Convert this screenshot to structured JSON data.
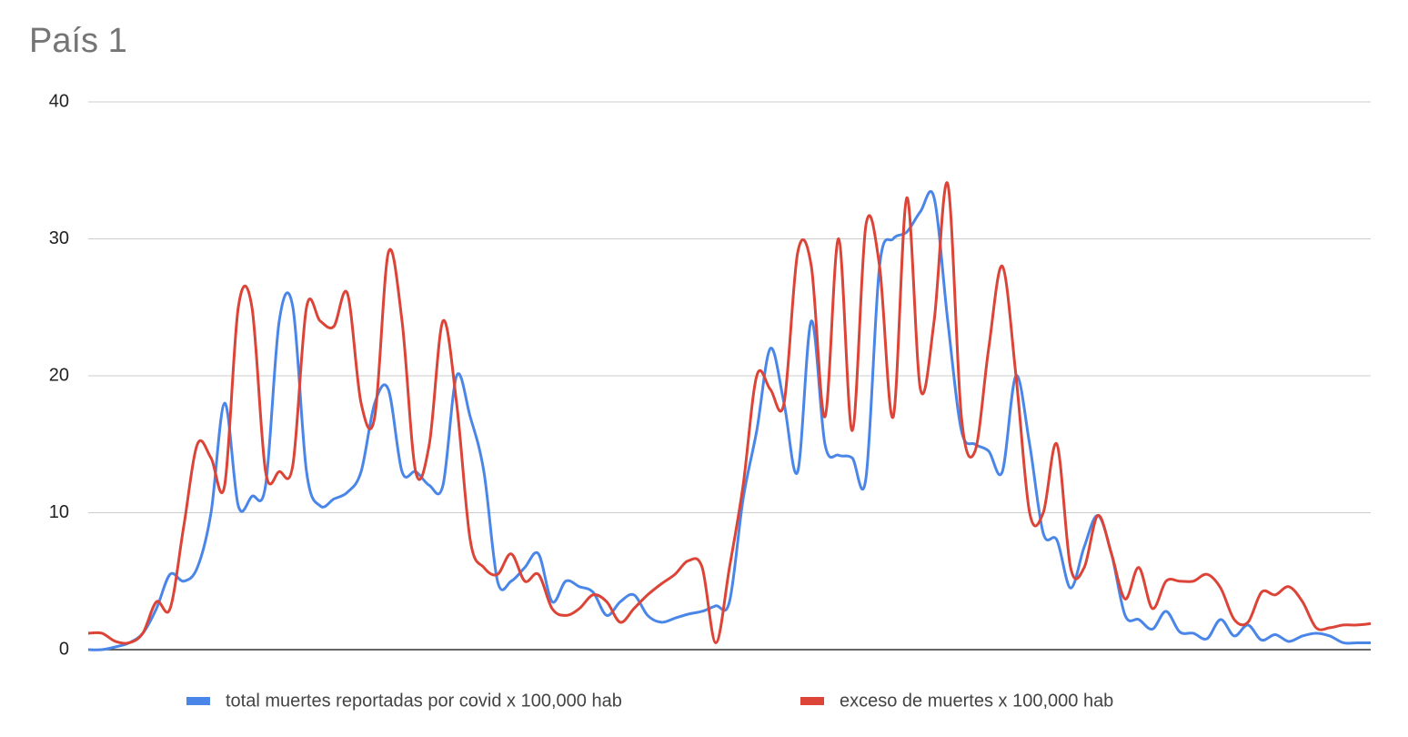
{
  "chart_data": {
    "type": "line",
    "title": "País 1",
    "categories": [
      null,
      null,
      null,
      null,
      null,
      null,
      null,
      null,
      null,
      null,
      null,
      null,
      null,
      null,
      null,
      null,
      null,
      null,
      null,
      null,
      null,
      null,
      null,
      null,
      null,
      null,
      null,
      null,
      null,
      null,
      null,
      null,
      null,
      null,
      null,
      null,
      null,
      null,
      null,
      null,
      null,
      null,
      null,
      null,
      null,
      null,
      null,
      null,
      null,
      null,
      null,
      null,
      null,
      null,
      null,
      null,
      null,
      null,
      null,
      null,
      null,
      null,
      null,
      null,
      null,
      null,
      null,
      null,
      null,
      null,
      null,
      null,
      null,
      null,
      null,
      null,
      null,
      null,
      null,
      null,
      null,
      null,
      null,
      null,
      null,
      null,
      null,
      null,
      null,
      null,
      null,
      null,
      null,
      null,
      null
    ],
    "series": [
      {
        "name": "total muertes reportadas por covid x 100,000 hab",
        "color": "#4a86e8",
        "values": [
          0,
          0,
          0.2,
          0.5,
          1.2,
          3,
          5.5,
          5,
          6,
          10,
          18,
          10.5,
          11.2,
          12,
          24,
          25,
          13,
          10.5,
          11,
          11.5,
          13,
          18,
          19,
          13,
          13,
          12,
          12,
          20,
          17,
          13,
          5,
          5,
          6,
          7,
          3.5,
          5,
          4.6,
          4.2,
          2.5,
          3.5,
          4,
          2.5,
          2,
          2.3,
          2.6,
          2.8,
          3.2,
          3.5,
          11,
          16,
          22,
          18,
          13,
          24,
          15,
          14.2,
          14,
          12.5,
          28,
          30,
          30.5,
          32,
          33,
          24,
          16,
          15,
          14.5,
          13,
          20,
          15,
          8.5,
          8,
          4.5,
          7.5,
          9.8,
          7,
          2.5,
          2.2,
          1.5,
          2.8,
          1.3,
          1.2,
          0.8,
          2.2,
          1,
          1.8,
          0.7,
          1.1,
          0.6,
          1,
          1.2,
          1,
          0.5,
          0.5,
          0.5
        ]
      },
      {
        "name": "exceso de muertes x 100,000 hab",
        "color": "#db4437",
        "values": [
          1.2,
          1.2,
          0.6,
          0.5,
          1.2,
          3.5,
          3,
          9,
          15,
          14,
          12,
          25,
          25,
          13,
          13,
          13.5,
          25,
          24,
          23.6,
          26,
          18,
          17,
          29,
          24,
          13,
          15,
          24,
          18,
          8,
          6,
          5.5,
          7,
          5,
          5.5,
          3,
          2.5,
          3,
          4,
          3.5,
          2,
          3,
          4,
          4.8,
          5.5,
          6.5,
          6,
          0.5,
          6,
          12,
          20,
          19,
          18,
          29,
          28,
          17,
          30,
          16,
          31,
          28,
          17,
          33,
          19,
          24,
          34,
          17,
          14.5,
          22,
          28,
          20,
          10,
          10,
          15,
          6,
          6,
          9.8,
          7,
          3.7,
          6,
          3,
          5,
          5,
          5,
          5.5,
          4.5,
          2.2,
          2,
          4.2,
          4,
          4.6,
          3.5,
          1.6,
          1.6,
          1.8,
          1.8,
          1.9
        ]
      }
    ],
    "ylim": [
      0,
      40
    ],
    "yticks": [
      0,
      10,
      20,
      30,
      40
    ],
    "grid": true
  }
}
